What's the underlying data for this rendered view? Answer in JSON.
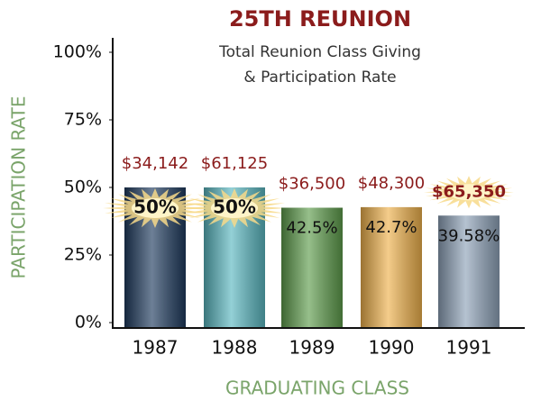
{
  "chart_data": {
    "type": "bar",
    "title": "25TH REUNION",
    "subtitle": [
      "Total Reunion Class Giving",
      "& Participation Rate"
    ],
    "y_label": "PARTICIPATION RATE",
    "x_label": "GRADUATING CLASS",
    "categories": [
      "1987",
      "1988",
      "1989",
      "1990",
      "1991"
    ],
    "values": [
      50,
      50,
      42.5,
      42.7,
      39.58
    ],
    "value_labels": [
      "50%",
      "50%",
      "42.5%",
      "42.7%",
      "39.58%"
    ],
    "colors": [
      "#1f3b5e",
      "#5ab7c0",
      "#5e9c4c",
      "#eeb14c",
      "#8ea2b8"
    ],
    "giving": {
      "values": [
        34142,
        61125,
        36500,
        48300,
        65350
      ],
      "value_labels": [
        "$34,142",
        "$61,125",
        "$36,500",
        "$48,300",
        "$65,350"
      ]
    },
    "ylim": [
      0,
      100
    ],
    "yticks": [
      {
        "value": 0,
        "label": "0%"
      },
      {
        "value": 25,
        "label": "25%"
      },
      {
        "value": 50,
        "label": "50%"
      },
      {
        "value": 75,
        "label": "75%"
      },
      {
        "value": 100,
        "label": "100%"
      }
    ],
    "grid": false
  }
}
